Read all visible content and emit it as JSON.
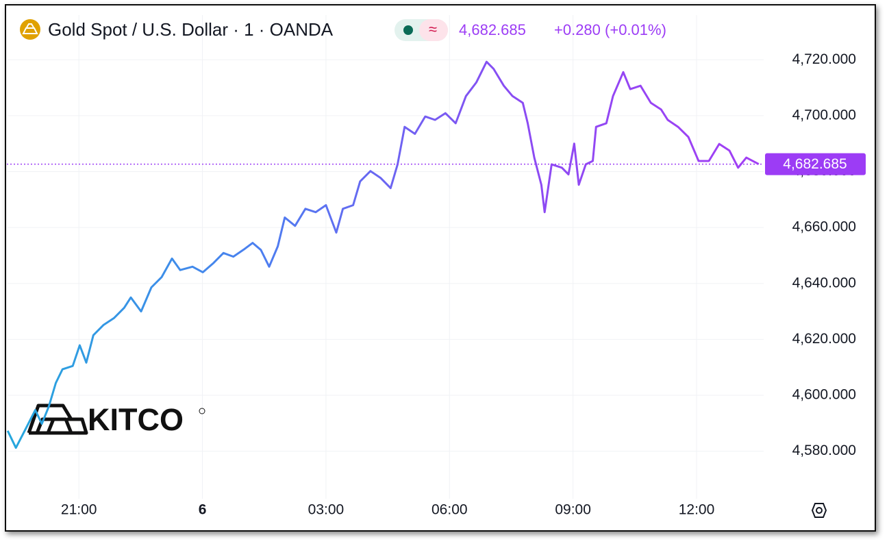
{
  "chart_data": {
    "type": "line",
    "title": "Gold Spot / U.S. Dollar · 1 · OANDA",
    "indicator": "≈",
    "price_label": "4,682.685",
    "change": "+0.280 (+0.01%)",
    "watermark": "KITCO",
    "x": [
      19.27,
      19.47,
      19.77,
      19.94,
      20.1,
      20.27,
      20.44,
      20.6,
      20.85,
      21.02,
      21.18,
      21.35,
      21.6,
      21.85,
      22.1,
      22.26,
      22.51,
      22.76,
      23.01,
      23.26,
      23.46,
      23.76,
      24.01,
      24.26,
      24.51,
      24.75,
      25.0,
      25.22,
      25.42,
      25.62,
      25.83,
      26.0,
      26.25,
      26.5,
      26.75,
      27.0,
      27.25,
      27.41,
      27.66,
      27.83,
      28.08,
      28.33,
      28.57,
      28.74,
      28.91,
      29.16,
      29.41,
      29.65,
      29.9,
      30.15,
      30.4,
      30.65,
      30.9,
      31.07,
      31.32,
      31.53,
      31.78,
      31.9,
      32.06,
      32.23,
      32.31,
      32.48,
      32.73,
      32.89,
      33.03,
      33.14,
      33.31,
      33.48,
      33.56,
      33.81,
      33.97,
      34.22,
      34.39,
      34.64,
      34.89,
      35.14,
      35.3,
      35.55,
      35.8,
      36.05,
      36.3,
      36.55,
      36.8,
      37.01,
      37.21,
      37.51
    ],
    "series": [
      {
        "colors": [
          "#25a7dc",
          "#4c7ff0",
          "#8a4cf3",
          "#a23ef4"
        ],
        "values": [
          4587.3,
          4581.2,
          4589.8,
          4594.7,
          4589.8,
          4596,
          4604.4,
          4609.3,
          4610.5,
          4617.9,
          4611.7,
          4621.5,
          4625.2,
          4627.6,
          4631.3,
          4635,
          4630,
          4638.6,
          4642.3,
          4648.9,
          4644.8,
          4646,
          4644,
          4647.2,
          4650.9,
          4649.6,
          4652.1,
          4654.5,
          4652,
          4646,
          4653.3,
          4663.6,
          4660.6,
          4666.7,
          4665.5,
          4668,
          4658.2,
          4666.7,
          4668,
          4676.5,
          4680.2,
          4677.7,
          4674.1,
          4682.6,
          4696,
          4693.5,
          4699.7,
          4698.5,
          4700.9,
          4697.3,
          4707,
          4711.9,
          4719.3,
          4716.8,
          4710.7,
          4707,
          4704.6,
          4697.3,
          4685,
          4675.3,
          4665.5,
          4682.6,
          4681.4,
          4679,
          4690,
          4675.3,
          4682.6,
          4683.8,
          4696,
          4697.3,
          4707,
          4715.6,
          4709.5,
          4710.7,
          4704.6,
          4702.2,
          4698.5,
          4696,
          4692.4,
          4683.8,
          4683.8,
          4689.9,
          4687.5,
          4681.4,
          4685,
          4682.685
        ]
      }
    ],
    "xlim": [
      19.25,
      37.63
    ],
    "ylim": [
      4563,
      4736
    ],
    "xticks": [
      {
        "value": 21,
        "label": "21:00"
      },
      {
        "value": 24,
        "label": "6"
      },
      {
        "value": 27,
        "label": "03:00"
      },
      {
        "value": 30,
        "label": "06:00"
      },
      {
        "value": 33,
        "label": "09:00"
      },
      {
        "value": 36,
        "label": "12:00"
      }
    ],
    "yticks": [
      {
        "value": 4580,
        "label": "4,580.000"
      },
      {
        "value": 4600,
        "label": "4,600.000"
      },
      {
        "value": 4620,
        "label": "4,620.000"
      },
      {
        "value": 4640,
        "label": "4,640.000"
      },
      {
        "value": 4660,
        "label": "4,660.000"
      },
      {
        "value": 4680,
        "label": "4,680.000"
      },
      {
        "value": 4700,
        "label": "4,700.000"
      },
      {
        "value": 4720,
        "label": "4,720.000"
      }
    ],
    "grid": true,
    "accent_color": "#9c3cf5"
  }
}
